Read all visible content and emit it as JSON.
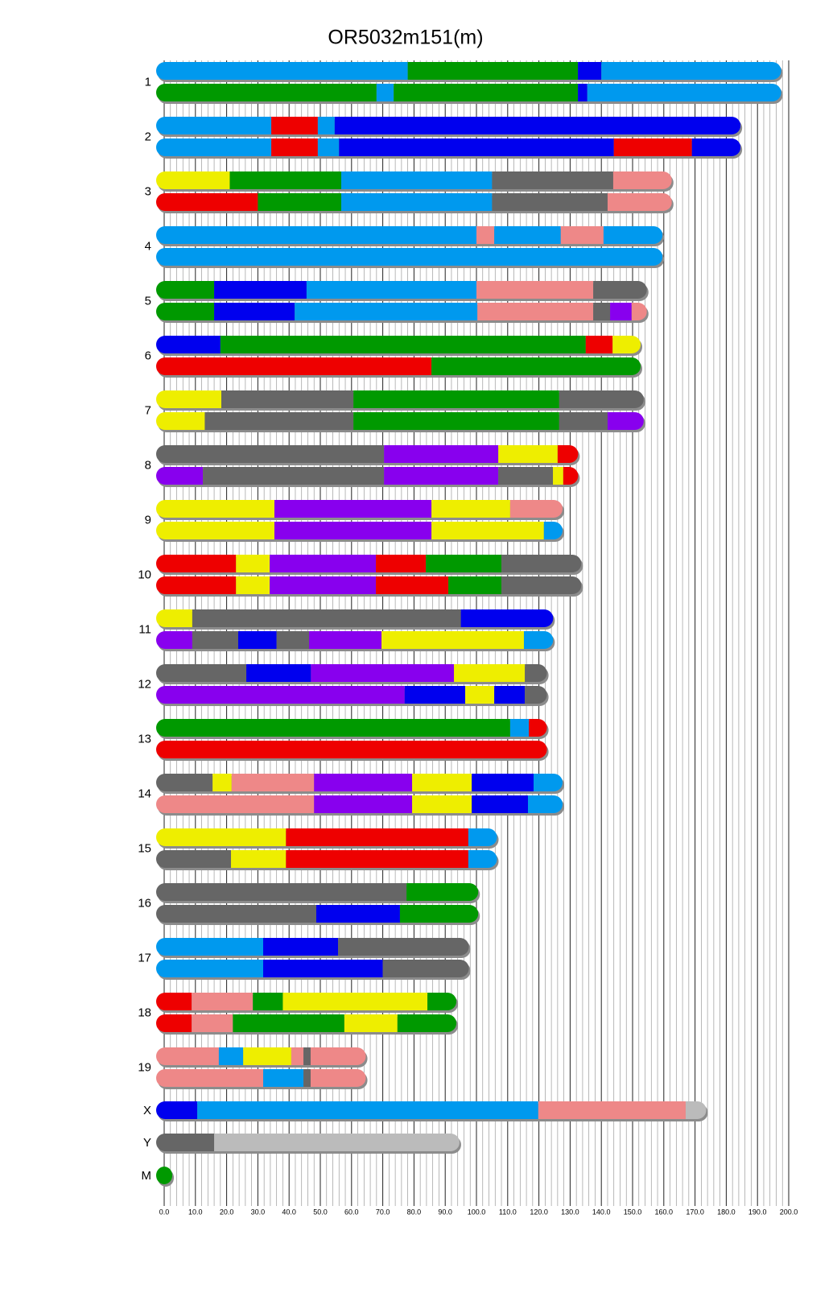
{
  "chart_data": {
    "type": "chromosome-painting",
    "title": "OR5032m151(m)",
    "xlim": [
      0,
      200
    ],
    "xticks": [
      {
        "value": 0,
        "label": "0.0"
      },
      {
        "value": 10,
        "label": "10.0"
      },
      {
        "value": 20,
        "label": "20.0"
      },
      {
        "value": 30,
        "label": "30.0"
      },
      {
        "value": 40,
        "label": "40.0"
      },
      {
        "value": 50,
        "label": "50.0"
      },
      {
        "value": 60,
        "label": "60.0"
      },
      {
        "value": 70,
        "label": "70.0"
      },
      {
        "value": 80,
        "label": "80.0"
      },
      {
        "value": 90,
        "label": "90.0"
      },
      {
        "value": 100,
        "label": "100.0"
      },
      {
        "value": 110,
        "label": "110.0"
      },
      {
        "value": 120,
        "label": "120.0"
      },
      {
        "value": 130,
        "label": "130.0"
      },
      {
        "value": 140,
        "label": "140.0"
      },
      {
        "value": 150,
        "label": "150.0"
      },
      {
        "value": 160,
        "label": "160.0"
      },
      {
        "value": 170,
        "label": "170.0"
      },
      {
        "value": 180,
        "label": "180.0"
      },
      {
        "value": 190,
        "label": "190.0"
      },
      {
        "value": 200,
        "label": "200.0"
      }
    ],
    "minor_grid": [
      2,
      4,
      6,
      8,
      12,
      14,
      16,
      18,
      22,
      24,
      26,
      28,
      32,
      34,
      36,
      38,
      42,
      44,
      46,
      48,
      52,
      54,
      56,
      58,
      62,
      64,
      66,
      68,
      72,
      74,
      76,
      78,
      82,
      84,
      86,
      88,
      92,
      94,
      96,
      98,
      102,
      104,
      106,
      108,
      112,
      114,
      116,
      118,
      122,
      124,
      126,
      128,
      132,
      134,
      136,
      138,
      142,
      144,
      146,
      148,
      152,
      154,
      156,
      158,
      162,
      164,
      166,
      168,
      172,
      174,
      176,
      178,
      182,
      184,
      186,
      188,
      192,
      194,
      196,
      198
    ],
    "chromosomes": [
      {
        "label": "1",
        "haplotypes": [
          {
            "breaks": [
              0,
              78,
              132.5,
              140,
              195
            ],
            "colors": [
              "#0099ee",
              "#009900",
              "#0000ee",
              "#0099ee"
            ]
          },
          {
            "breaks": [
              0,
              68,
              73.5,
              132.5,
              135.5,
              195
            ],
            "colors": [
              "#009900",
              "#0099ee",
              "#009900",
              "#0000ee",
              "#0099ee"
            ]
          }
        ]
      },
      {
        "label": "2",
        "haplotypes": [
          {
            "breaks": [
              0,
              34.3,
              49.2,
              54.6,
              182
            ],
            "colors": [
              "#0099ee",
              "#ee0000",
              "#0099ee",
              "#0000ee"
            ]
          },
          {
            "breaks": [
              0,
              34.3,
              49.2,
              56,
              144,
              169,
              182
            ],
            "colors": [
              "#0099ee",
              "#ee0000",
              "#0099ee",
              "#0000ee",
              "#ee0000",
              "#0000ee"
            ]
          }
        ]
      },
      {
        "label": "3",
        "haplotypes": [
          {
            "breaks": [
              0,
              21,
              56.7,
              105,
              143.8,
              160
            ],
            "colors": [
              "#eeee00",
              "#009900",
              "#0099ee",
              "#666666",
              "#ee8888"
            ]
          },
          {
            "breaks": [
              0,
              30,
              56.7,
              105,
              142,
              160
            ],
            "colors": [
              "#ee0000",
              "#009900",
              "#0099ee",
              "#666666",
              "#ee8888"
            ]
          }
        ]
      },
      {
        "label": "4",
        "haplotypes": [
          {
            "breaks": [
              0,
              100,
              105.7,
              127,
              140.7,
              157
            ],
            "colors": [
              "#0099ee",
              "#ee8888",
              "#0099ee",
              "#ee8888",
              "#0099ee"
            ]
          },
          {
            "breaks": [
              0,
              157
            ],
            "colors": [
              "#0099ee"
            ]
          }
        ]
      },
      {
        "label": "5",
        "haplotypes": [
          {
            "breaks": [
              0,
              16,
              45.6,
              100,
              137.4,
              152
            ],
            "colors": [
              "#009900",
              "#0000ee",
              "#0099ee",
              "#ee8888",
              "#666666"
            ]
          },
          {
            "breaks": [
              0,
              16,
              41.8,
              100.3,
              137.4,
              142.8,
              149.7,
              152
            ],
            "colors": [
              "#009900",
              "#0000ee",
              "#0099ee",
              "#ee8888",
              "#666666",
              "#8800ee",
              "#ee8888"
            ]
          }
        ]
      },
      {
        "label": "6",
        "haplotypes": [
          {
            "breaks": [
              0,
              18,
              135,
              143.6,
              150
            ],
            "colors": [
              "#0000ee",
              "#009900",
              "#ee0000",
              "#eeee00"
            ]
          },
          {
            "breaks": [
              0,
              85.6,
              150
            ],
            "colors": [
              "#ee0000",
              "#009900"
            ]
          }
        ]
      },
      {
        "label": "7",
        "haplotypes": [
          {
            "breaks": [
              0,
              18.3,
              60.6,
              126.5,
              151
            ],
            "colors": [
              "#eeee00",
              "#666666",
              "#009900",
              "#666666"
            ]
          },
          {
            "breaks": [
              0,
              13,
              60.6,
              126.5,
              142,
              151
            ],
            "colors": [
              "#eeee00",
              "#666666",
              "#009900",
              "#666666",
              "#8800ee"
            ]
          }
        ]
      },
      {
        "label": "8",
        "haplotypes": [
          {
            "breaks": [
              0,
              70.4,
              107,
              126,
              130
            ],
            "colors": [
              "#666666",
              "#8800ee",
              "#eeee00",
              "#ee0000"
            ]
          },
          {
            "breaks": [
              0,
              12.4,
              70.4,
              107,
              124.5,
              127.8,
              130
            ],
            "colors": [
              "#8800ee",
              "#666666",
              "#8800ee",
              "#666666",
              "#eeee00",
              "#ee0000"
            ]
          }
        ]
      },
      {
        "label": "9",
        "haplotypes": [
          {
            "breaks": [
              0,
              35.3,
              85.6,
              110.8,
              125
            ],
            "colors": [
              "#eeee00",
              "#8800ee",
              "#eeee00",
              "#ee8888"
            ]
          },
          {
            "breaks": [
              0,
              35.3,
              85.6,
              121.6,
              125
            ],
            "colors": [
              "#eeee00",
              "#8800ee",
              "#eeee00",
              "#0099ee"
            ]
          }
        ]
      },
      {
        "label": "10",
        "haplotypes": [
          {
            "breaks": [
              0,
              23,
              33.8,
              67.8,
              83.8,
              108,
              131
            ],
            "colors": [
              "#ee0000",
              "#eeee00",
              "#8800ee",
              "#ee0000",
              "#009900",
              "#666666"
            ]
          },
          {
            "breaks": [
              0,
              23,
              33.8,
              67.8,
              91,
              108,
              131
            ],
            "colors": [
              "#ee0000",
              "#eeee00",
              "#8800ee",
              "#ee0000",
              "#009900",
              "#666666"
            ]
          }
        ]
      },
      {
        "label": "11",
        "haplotypes": [
          {
            "breaks": [
              0,
              9,
              95,
              122
            ],
            "colors": [
              "#eeee00",
              "#666666",
              "#0000ee"
            ]
          },
          {
            "breaks": [
              0,
              9,
              23.7,
              36,
              46.4,
              69.6,
              115.2,
              122
            ],
            "colors": [
              "#8800ee",
              "#666666",
              "#0000ee",
              "#666666",
              "#8800ee",
              "#eeee00",
              "#0099ee"
            ]
          }
        ]
      },
      {
        "label": "12",
        "haplotypes": [
          {
            "breaks": [
              0,
              26.3,
              47,
              92.8,
              115.5,
              120
            ],
            "colors": [
              "#666666",
              "#0000ee",
              "#8800ee",
              "#eeee00",
              "#666666"
            ]
          },
          {
            "breaks": [
              0,
              77,
              96.4,
              105.7,
              115.5,
              120
            ],
            "colors": [
              "#8800ee",
              "#0000ee",
              "#eeee00",
              "#0000ee",
              "#666666"
            ]
          }
        ]
      },
      {
        "label": "13",
        "haplotypes": [
          {
            "breaks": [
              0,
              110.8,
              116.8,
              120
            ],
            "colors": [
              "#009900",
              "#0099ee",
              "#ee0000"
            ]
          },
          {
            "breaks": [
              0,
              120
            ],
            "colors": [
              "#ee0000"
            ]
          }
        ]
      },
      {
        "label": "14",
        "haplotypes": [
          {
            "breaks": [
              0,
              15.5,
              21.6,
              48,
              79.4,
              98.5,
              118.3,
              125
            ],
            "colors": [
              "#666666",
              "#eeee00",
              "#ee8888",
              "#8800ee",
              "#eeee00",
              "#0000ee",
              "#0099ee"
            ]
          },
          {
            "breaks": [
              0,
              48,
              79.4,
              98.5,
              116.5,
              125
            ],
            "colors": [
              "#ee8888",
              "#8800ee",
              "#eeee00",
              "#0000ee",
              "#0099ee"
            ]
          }
        ]
      },
      {
        "label": "15",
        "haplotypes": [
          {
            "breaks": [
              0,
              39,
              97.4,
              104
            ],
            "colors": [
              "#eeee00",
              "#ee0000",
              "#0099ee"
            ]
          },
          {
            "breaks": [
              0,
              21.4,
              39,
              97.4,
              104
            ],
            "colors": [
              "#666666",
              "#eeee00",
              "#ee0000",
              "#0099ee"
            ]
          }
        ]
      },
      {
        "label": "16",
        "haplotypes": [
          {
            "breaks": [
              0,
              77.6,
              98
            ],
            "colors": [
              "#666666",
              "#009900"
            ]
          },
          {
            "breaks": [
              0,
              48.7,
              75.5,
              98
            ],
            "colors": [
              "#666666",
              "#0000ee",
              "#009900"
            ]
          }
        ]
      },
      {
        "label": "17",
        "haplotypes": [
          {
            "breaks": [
              0,
              31.7,
              55.7,
              95
            ],
            "colors": [
              "#0099ee",
              "#0000ee",
              "#666666"
            ]
          },
          {
            "breaks": [
              0,
              31.7,
              70,
              95
            ],
            "colors": [
              "#0099ee",
              "#0000ee",
              "#666666"
            ]
          }
        ]
      },
      {
        "label": "18",
        "haplotypes": [
          {
            "breaks": [
              0,
              8.8,
              28.4,
              38,
              84.3,
              91
            ],
            "colors": [
              "#ee0000",
              "#ee8888",
              "#009900",
              "#eeee00",
              "#009900"
            ]
          },
          {
            "breaks": [
              0,
              8.8,
              22,
              57.7,
              74.7,
              91
            ],
            "colors": [
              "#ee0000",
              "#ee8888",
              "#009900",
              "#eeee00",
              "#009900"
            ]
          }
        ]
      },
      {
        "label": "19",
        "haplotypes": [
          {
            "breaks": [
              0,
              17.5,
              25.3,
              40.7,
              44.6,
              46.9,
              62
            ],
            "colors": [
              "#ee8888",
              "#0099ee",
              "#eeee00",
              "#ee8888",
              "#666666",
              "#ee8888"
            ]
          },
          {
            "breaks": [
              0,
              31.7,
              44.6,
              46.9,
              62
            ],
            "colors": [
              "#ee8888",
              "#0099ee",
              "#666666",
              "#ee8888"
            ]
          }
        ]
      },
      {
        "label": "X",
        "haplotypes": [
          {
            "breaks": [
              0,
              10.6,
              119.8,
              167,
              171
            ],
            "colors": [
              "#0000ee",
              "#0099ee",
              "#ee8888",
              "#bbbbbb"
            ]
          }
        ]
      },
      {
        "label": "Y",
        "haplotypes": [
          {
            "breaks": [
              0,
              16,
              92
            ],
            "colors": [
              "#666666",
              "#bbbbbb"
            ]
          }
        ]
      },
      {
        "label": "M",
        "haplotypes": [
          {
            "breaks": [
              0,
              0.02
            ],
            "colors": [
              "#009900"
            ]
          }
        ]
      }
    ]
  }
}
